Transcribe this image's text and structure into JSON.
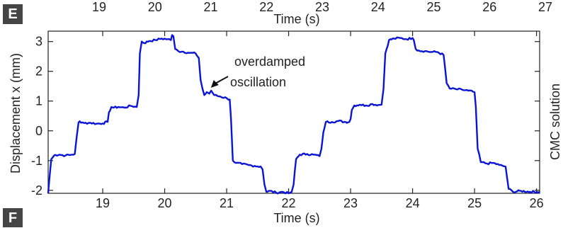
{
  "panels": {
    "top_label": "E",
    "bottom_label": "F"
  },
  "top_axis": {
    "label": "Time (s)",
    "ticks": [
      "19",
      "20",
      "21",
      "22",
      "23",
      "24",
      "25",
      "26",
      "27"
    ]
  },
  "side_label": "CMC solution",
  "chart_data": {
    "type": "line",
    "xlabel": "Time (s)",
    "ylabel": "Displacement x (mm)",
    "xlim": [
      18.12,
      26.05
    ],
    "ylim": [
      -2.1,
      3.35
    ],
    "xticks": [
      19,
      20,
      21,
      22,
      23,
      24,
      25,
      26
    ],
    "yticks": [
      3,
      2,
      1,
      0,
      -1,
      -2
    ],
    "series": [
      {
        "color": "#0a14d6",
        "x": [
          18.12,
          18.14,
          18.17,
          18.22,
          18.3,
          18.4,
          18.5,
          18.55,
          18.58,
          18.61,
          18.63,
          18.65,
          18.7,
          18.8,
          18.9,
          19.0,
          19.08,
          19.1,
          19.14,
          19.18,
          19.25,
          19.35,
          19.45,
          19.55,
          19.58,
          19.6,
          19.63,
          19.67,
          19.75,
          19.85,
          19.95,
          20.05,
          20.1,
          20.12,
          20.14,
          20.17,
          20.22,
          20.3,
          20.4,
          20.5,
          20.55,
          20.58,
          20.61,
          20.64,
          20.68,
          20.72,
          20.75,
          20.8,
          20.9,
          21.0,
          21.05,
          21.07,
          21.1,
          21.15,
          21.25,
          21.35,
          21.45,
          21.55,
          21.58,
          21.61,
          21.64,
          21.7,
          21.8,
          21.9,
          22.0,
          22.05,
          22.08,
          22.12,
          22.18,
          22.3,
          22.4,
          22.5,
          22.53,
          22.56,
          22.6,
          22.7,
          22.8,
          22.9,
          22.98,
          23.0,
          23.02,
          23.06,
          23.15,
          23.25,
          23.35,
          23.45,
          23.5,
          23.53,
          23.56,
          23.62,
          23.7,
          23.8,
          23.9,
          24.0,
          24.02,
          24.05,
          24.1,
          24.2,
          24.3,
          24.4,
          24.5,
          24.52,
          24.55,
          24.6,
          24.7,
          24.8,
          24.9,
          25.0,
          25.02,
          25.05,
          25.1,
          25.2,
          25.3,
          25.4,
          25.5,
          25.52,
          25.55,
          25.62,
          25.75,
          25.9,
          26.05
        ],
        "y": [
          -2.1,
          -1.6,
          -0.95,
          -0.82,
          -0.8,
          -0.83,
          -0.8,
          -0.78,
          -0.2,
          0.28,
          0.32,
          0.27,
          0.26,
          0.27,
          0.24,
          0.25,
          0.3,
          0.62,
          0.8,
          0.78,
          0.8,
          0.78,
          0.84,
          0.8,
          1.2,
          2.6,
          3.0,
          2.95,
          3.02,
          3.05,
          3.1,
          3.08,
          3.05,
          3.22,
          3.18,
          2.75,
          2.68,
          2.66,
          2.62,
          2.6,
          2.45,
          1.7,
          1.42,
          1.2,
          1.3,
          1.25,
          1.35,
          1.2,
          1.15,
          1.1,
          1.05,
          0.4,
          -1.0,
          -1.08,
          -1.12,
          -1.15,
          -1.18,
          -1.2,
          -1.3,
          -1.8,
          -2.05,
          -2.02,
          -2.08,
          -2.05,
          -2.1,
          -2.05,
          -1.8,
          -0.95,
          -0.8,
          -0.78,
          -0.8,
          -0.85,
          -0.6,
          -0.05,
          0.3,
          0.3,
          0.33,
          0.3,
          0.3,
          0.4,
          0.7,
          0.85,
          0.88,
          0.85,
          0.9,
          0.87,
          0.88,
          1.4,
          2.6,
          3.05,
          3.1,
          3.12,
          3.08,
          3.12,
          3.05,
          2.75,
          2.7,
          2.68,
          2.65,
          2.65,
          2.55,
          2.2,
          1.6,
          1.42,
          1.4,
          1.38,
          1.35,
          1.3,
          0.8,
          -0.6,
          -1.05,
          -1.1,
          -1.08,
          -1.15,
          -1.2,
          -1.5,
          -1.95,
          -2.05,
          -2.02,
          -2.05,
          -2.05
        ]
      }
    ],
    "annotations": [
      {
        "text_line1": "overdamped",
        "text_line2": "oscillation",
        "arrow_to": [
          20.7,
          1.35
        ]
      }
    ]
  }
}
